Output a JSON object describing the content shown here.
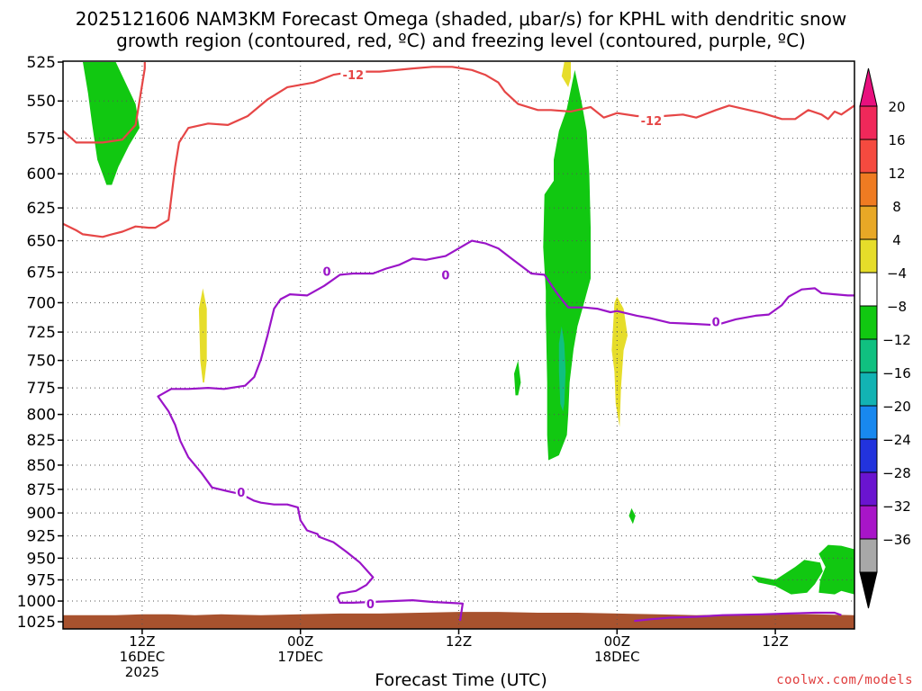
{
  "title": {
    "line1": "2025121606 NAM3KM Forecast Omega (shaded, μbar/s) for KPHL with dendritic snow",
    "line2": "growth region (contoured, red, ºC) and freezing level (contoured, purple, ºC)"
  },
  "credit": "coolwx.com/models",
  "chart_data": {
    "type": "time-height cross section",
    "xlabel": "Forecast Time (UTC)",
    "x_ticks": [
      {
        "hours": 12,
        "lines": [
          "12Z",
          "16DEC",
          "2025"
        ]
      },
      {
        "hours": 24,
        "lines": [
          "00Z",
          "17DEC"
        ]
      },
      {
        "hours": 36,
        "lines": [
          "12Z"
        ]
      },
      {
        "hours": 48,
        "lines": [
          "00Z",
          "18DEC"
        ]
      },
      {
        "hours": 60,
        "lines": [
          "12Z"
        ]
      }
    ],
    "xlim": [
      6,
      66
    ],
    "y_axis": {
      "unit": "hPa",
      "inverted": true,
      "scale": "log-pressure",
      "ticks": [
        525,
        550,
        575,
        600,
        625,
        650,
        675,
        700,
        725,
        750,
        775,
        800,
        825,
        850,
        875,
        900,
        925,
        950,
        975,
        1000,
        1025
      ],
      "ylim": [
        525,
        1025
      ]
    },
    "grid": true,
    "colorbar": {
      "levels": [
        "20",
        "16",
        "12",
        "8",
        "4",
        "−4",
        "−8",
        "−12",
        "−16",
        "−20",
        "−24",
        "−28",
        "−32",
        "−36"
      ],
      "colors": [
        "#f0285a",
        "#f54a3f",
        "#ef7b22",
        "#e8a826",
        "#e6dd2a",
        "#ffffff",
        "#11c811",
        "#10c080",
        "#12b3b3",
        "#1888ef",
        "#2233dd",
        "#6a14d0",
        "#a815c8",
        "#a8a8a8",
        "#000000"
      ],
      "top_arrow": "#e8107e",
      "bottom_arrow": "#000000"
    },
    "series": [
      {
        "kind": "contour",
        "color": "#e64646",
        "labels": [
          {
            "hours": 28,
            "p": 533,
            "text": "-12"
          },
          {
            "hours": 50.6,
            "p": 563,
            "text": "-12"
          }
        ],
        "points": [
          [
            6,
            570
          ],
          [
            7,
            578
          ],
          [
            9,
            578
          ],
          [
            10.5,
            576
          ],
          [
            11.5,
            566
          ],
          [
            12.2,
            529
          ],
          [
            12.2,
            525
          ]
        ]
      },
      {
        "kind": "contour",
        "color": "#e64646",
        "points": [
          [
            6,
            637
          ],
          [
            7,
            642
          ],
          [
            7.5,
            645
          ],
          [
            9,
            647
          ],
          [
            9.7,
            645
          ],
          [
            10.5,
            643
          ],
          [
            11.5,
            639
          ],
          [
            12.5,
            640
          ],
          [
            13,
            640
          ],
          [
            14,
            634
          ],
          [
            14.5,
            595
          ],
          [
            14.8,
            578
          ],
          [
            15.5,
            568
          ],
          [
            17,
            565
          ],
          [
            18.5,
            566
          ],
          [
            20,
            560
          ],
          [
            21.5,
            549
          ],
          [
            23,
            541
          ],
          [
            25,
            538
          ],
          [
            26.5,
            533
          ],
          [
            28,
            531
          ],
          [
            30,
            531
          ],
          [
            32.5,
            529
          ],
          [
            34,
            528
          ],
          [
            35.5,
            528
          ],
          [
            37,
            530
          ],
          [
            38,
            533
          ],
          [
            39,
            538
          ],
          [
            39.5,
            544
          ],
          [
            40.5,
            552
          ],
          [
            42,
            556
          ],
          [
            43,
            556
          ],
          [
            44.5,
            557
          ],
          [
            46,
            554
          ],
          [
            47,
            561
          ],
          [
            48,
            558
          ],
          [
            49.5,
            560
          ],
          [
            51.5,
            560
          ],
          [
            53,
            559
          ],
          [
            54,
            561
          ],
          [
            55.5,
            556
          ],
          [
            56.5,
            553
          ],
          [
            57.5,
            555
          ],
          [
            59,
            558
          ],
          [
            60.5,
            562
          ],
          [
            61.5,
            562
          ],
          [
            62.5,
            556
          ],
          [
            63.5,
            559
          ],
          [
            64,
            562
          ],
          [
            64.5,
            557
          ],
          [
            65,
            559
          ],
          [
            66,
            553
          ]
        ]
      },
      {
        "kind": "contour",
        "color": "#9a14c8",
        "labels": [
          {
            "hours": 26,
            "p": 674,
            "text": "0"
          },
          {
            "hours": 19.5,
            "p": 878,
            "text": "0"
          },
          {
            "hours": 35,
            "p": 677,
            "text": "0"
          },
          {
            "hours": 55.5,
            "p": 716,
            "text": "0"
          },
          {
            "hours": 29.3,
            "p": 1003,
            "text": "0"
          }
        ],
        "points": [
          [
            36.1,
            1024
          ],
          [
            36.3,
            1003
          ],
          [
            34,
            1001
          ],
          [
            32.5,
            999
          ],
          [
            28,
            1002
          ],
          [
            27,
            1002
          ],
          [
            26.8,
            995
          ],
          [
            27,
            991
          ],
          [
            28.2,
            988
          ],
          [
            29,
            981
          ],
          [
            29.5,
            972
          ],
          [
            28.5,
            955
          ],
          [
            27.5,
            943
          ],
          [
            26.5,
            932
          ],
          [
            25.4,
            926
          ],
          [
            25.3,
            923
          ],
          [
            24.5,
            919
          ],
          [
            24,
            908
          ],
          [
            23.8,
            894
          ],
          [
            23,
            891
          ],
          [
            22.5,
            891
          ],
          [
            22,
            891
          ],
          [
            21,
            889
          ],
          [
            20.5,
            887
          ],
          [
            19.5,
            880
          ],
          [
            18.5,
            877
          ],
          [
            17.3,
            873
          ],
          [
            16.5,
            858
          ],
          [
            15.5,
            842
          ],
          [
            14.9,
            826
          ],
          [
            14.5,
            810
          ],
          [
            14,
            797
          ],
          [
            13.6,
            790
          ],
          [
            13.2,
            783
          ],
          [
            14.2,
            776
          ],
          [
            15.5,
            776
          ],
          [
            17,
            775
          ],
          [
            18.2,
            776
          ],
          [
            19.8,
            773
          ],
          [
            20.5,
            765
          ],
          [
            21,
            749
          ],
          [
            21.5,
            728
          ],
          [
            22,
            705
          ],
          [
            22.5,
            697
          ],
          [
            23.2,
            693
          ],
          [
            24.5,
            694
          ],
          [
            25.8,
            686
          ],
          [
            27,
            677
          ],
          [
            28,
            676
          ],
          [
            29.5,
            676
          ],
          [
            30.5,
            672
          ],
          [
            31.5,
            669
          ],
          [
            32.5,
            664
          ],
          [
            33.5,
            665
          ],
          [
            35,
            662
          ],
          [
            36,
            656
          ],
          [
            37,
            650
          ],
          [
            38,
            652
          ],
          [
            39,
            656
          ],
          [
            40,
            664
          ],
          [
            41.5,
            676
          ],
          [
            42.5,
            677
          ],
          [
            43.5,
            693
          ],
          [
            44.3,
            704
          ],
          [
            45.5,
            704
          ],
          [
            46.5,
            705
          ],
          [
            47.5,
            708
          ],
          [
            48,
            707
          ],
          [
            49.5,
            711
          ],
          [
            50.5,
            713
          ],
          [
            52,
            717
          ],
          [
            54,
            718
          ],
          [
            55.5,
            719
          ],
          [
            57,
            714
          ],
          [
            58.5,
            711
          ],
          [
            59.5,
            710
          ],
          [
            60.5,
            702
          ],
          [
            61,
            695
          ],
          [
            62,
            689
          ],
          [
            63,
            688
          ],
          [
            63.5,
            692
          ],
          [
            64.5,
            693
          ],
          [
            65.5,
            694
          ],
          [
            66,
            694
          ]
        ]
      },
      {
        "kind": "contour",
        "color": "#9a14c8",
        "points": [
          [
            49.3,
            1024
          ],
          [
            50.5,
            1022
          ],
          [
            52,
            1020
          ],
          [
            54,
            1019
          ],
          [
            56,
            1017
          ],
          [
            59,
            1016
          ],
          [
            61,
            1015
          ],
          [
            63,
            1014
          ],
          [
            64.5,
            1014
          ],
          [
            65,
            1017
          ]
        ]
      }
    ],
    "shaded_regions": [
      {
        "band": "-4 to -8",
        "color": "#11c811",
        "points": [
          [
            7.5,
            525
          ],
          [
            10,
            525
          ],
          [
            11.5,
            552
          ],
          [
            11.8,
            568
          ],
          [
            11,
            580
          ],
          [
            10.2,
            595
          ],
          [
            9.7,
            608
          ],
          [
            9.3,
            608
          ],
          [
            8.6,
            590
          ],
          [
            8.2,
            565
          ],
          [
            7.9,
            545
          ]
        ]
      },
      {
        "band": "4 to 8",
        "color": "#e6dd2a",
        "points": [
          [
            16.3,
            705
          ],
          [
            16.6,
            688
          ],
          [
            16.9,
            705
          ],
          [
            16.9,
            750
          ],
          [
            16.7,
            770
          ],
          [
            16.6,
            770
          ],
          [
            16.4,
            750
          ]
        ]
      },
      {
        "band": "4 to 8",
        "color": "#e6dd2a",
        "points": [
          [
            44,
            525
          ],
          [
            44.5,
            525
          ],
          [
            44.5,
            535
          ],
          [
            44.3,
            541
          ],
          [
            43.8,
            534
          ]
        ]
      },
      {
        "band": "-4 to -8",
        "color": "#11c811",
        "points": [
          [
            44.8,
            530
          ],
          [
            45.3,
            550
          ],
          [
            45.7,
            570
          ],
          [
            45.9,
            600
          ],
          [
            46,
            640
          ],
          [
            46,
            680
          ],
          [
            45.5,
            700
          ],
          [
            45,
            720
          ],
          [
            44.7,
            740
          ],
          [
            44.4,
            770
          ],
          [
            44.3,
            800
          ],
          [
            44.2,
            820
          ],
          [
            43.6,
            840
          ],
          [
            42.8,
            845
          ],
          [
            42.7,
            820
          ],
          [
            42.7,
            770
          ],
          [
            42.6,
            710
          ],
          [
            42.6,
            690
          ],
          [
            42.4,
            655
          ],
          [
            42.5,
            615
          ],
          [
            43.2,
            605
          ],
          [
            43.2,
            590
          ],
          [
            43.6,
            570
          ],
          [
            44.2,
            555
          ]
        ]
      },
      {
        "band": "-8 to -12",
        "color": "#10c080",
        "points": [
          [
            43.8,
            720
          ],
          [
            44,
            735
          ],
          [
            44.1,
            760
          ],
          [
            44,
            790
          ],
          [
            43.9,
            797
          ],
          [
            43.7,
            790
          ],
          [
            43.6,
            760
          ],
          [
            43.6,
            735
          ]
        ]
      },
      {
        "band": "-4 to -8",
        "color": "#11c811",
        "points": [
          [
            40.2,
            762
          ],
          [
            40.5,
            750
          ],
          [
            40.7,
            770
          ],
          [
            40.5,
            782
          ],
          [
            40.3,
            782
          ]
        ]
      },
      {
        "band": "4 to 8",
        "color": "#e6dd2a",
        "points": [
          [
            48,
            695
          ],
          [
            48.5,
            705
          ],
          [
            48.8,
            728
          ],
          [
            48.5,
            741
          ],
          [
            48.3,
            775
          ],
          [
            48.2,
            812
          ],
          [
            47.9,
            790
          ],
          [
            47.8,
            760
          ],
          [
            47.6,
            741
          ],
          [
            47.7,
            720
          ],
          [
            47.8,
            700
          ]
        ]
      },
      {
        "band": "-4 to -8",
        "color": "#11c811",
        "points": [
          [
            49.1,
            895
          ],
          [
            49.4,
            903
          ],
          [
            49.2,
            912
          ],
          [
            48.9,
            903
          ]
        ]
      },
      {
        "band": "-4 to -8",
        "color": "#11c811",
        "points": [
          [
            63.3,
            945
          ],
          [
            64,
            935
          ],
          [
            65,
            936
          ],
          [
            66,
            940
          ],
          [
            66,
            992
          ],
          [
            65,
            988
          ],
          [
            64.5,
            992
          ],
          [
            63.3,
            990
          ],
          [
            63.4,
            975
          ],
          [
            63.8,
            960
          ]
        ]
      },
      {
        "band": "-4 to -8",
        "color": "#11c811",
        "points": [
          [
            58.2,
            970
          ],
          [
            60,
            975
          ],
          [
            61.5,
            960
          ],
          [
            62.2,
            952
          ],
          [
            63.4,
            955
          ],
          [
            63.6,
            965
          ],
          [
            63,
            980
          ],
          [
            62.4,
            990
          ],
          [
            61.2,
            992
          ],
          [
            60,
            982
          ],
          [
            58.7,
            978
          ]
        ]
      }
    ],
    "terrain": {
      "color": "#a8522e",
      "surface_p": [
        [
          6,
          1017
        ],
        [
          10,
          1017
        ],
        [
          12,
          1016
        ],
        [
          14,
          1016
        ],
        [
          16,
          1017
        ],
        [
          18,
          1016
        ],
        [
          21,
          1017
        ],
        [
          24,
          1016
        ],
        [
          27,
          1015
        ],
        [
          30,
          1015
        ],
        [
          33,
          1014
        ],
        [
          36,
          1013
        ],
        [
          39,
          1013
        ],
        [
          42,
          1014
        ],
        [
          45,
          1014
        ],
        [
          48,
          1015
        ],
        [
          51,
          1016
        ],
        [
          54,
          1017
        ],
        [
          57,
          1016
        ],
        [
          60,
          1016
        ],
        [
          63,
          1016
        ],
        [
          66,
          1017
        ]
      ]
    }
  }
}
